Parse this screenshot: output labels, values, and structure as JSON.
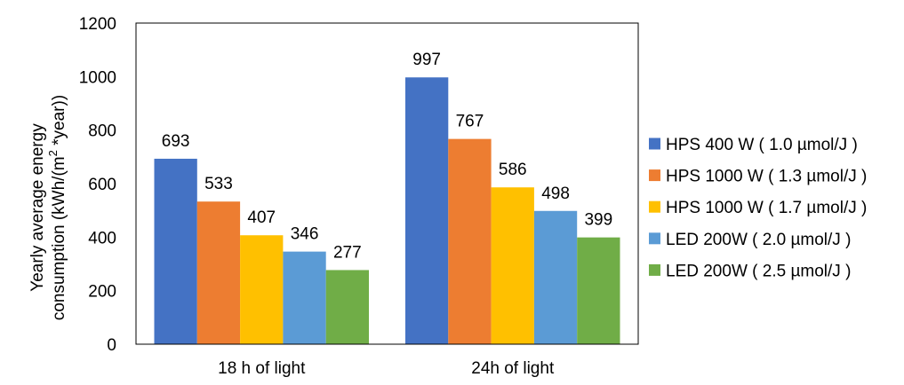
{
  "chart_data": {
    "type": "bar",
    "title": "",
    "xlabel": "",
    "ylabel_line1": "Yearly average energy",
    "ylabel_line2_prefix": "consumption (kWh/(m",
    "ylabel_line2_sup": "2",
    "ylabel_line2_suffix": " *year))",
    "ylim": [
      0,
      1200
    ],
    "yticks": [
      "0",
      "200",
      "400",
      "600",
      "800",
      "1000",
      "1200"
    ],
    "ytick_values": [
      0,
      200,
      400,
      600,
      800,
      1000,
      1200
    ],
    "grid": false,
    "legend_position": "right",
    "categories": [
      "18 h of light",
      "24h of light"
    ],
    "series": [
      {
        "name": "HPS 400 W ( 1.0 µmol/J )",
        "color": "#4472C4",
        "values": [
          693,
          997
        ],
        "labels": [
          "693",
          "997"
        ]
      },
      {
        "name": "HPS 1000 W ( 1.3 µmol/J )",
        "color": "#ED7D31",
        "values": [
          533,
          767
        ],
        "labels": [
          "533",
          "767"
        ]
      },
      {
        "name": "HPS 1000 W ( 1.7 µmol/J )",
        "color": "#FFC000",
        "values": [
          407,
          586
        ],
        "labels": [
          "407",
          "586"
        ]
      },
      {
        "name": "LED 200W ( 2.0 µmol/J )",
        "color": "#5B9BD5",
        "values": [
          346,
          498
        ],
        "labels": [
          "346",
          "498"
        ]
      },
      {
        "name": "LED 200W ( 2.5 µmol/J )",
        "color": "#70AD47",
        "values": [
          277,
          399
        ],
        "labels": [
          "277",
          "399"
        ]
      }
    ]
  }
}
